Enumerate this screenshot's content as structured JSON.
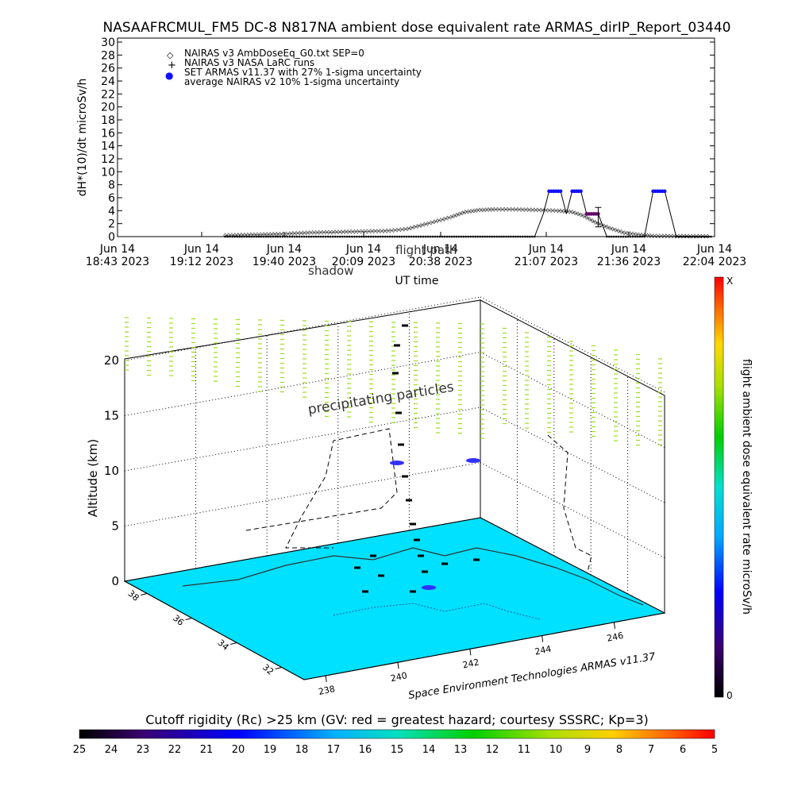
{
  "title": "NASAAFRCMUL_FM5 DC-8   N817NA ambient dose equivalent rate ARMAS_dirIP_Report_03440",
  "colors": {
    "armas": "#1010ff",
    "nairas_v3": "#000000",
    "avg_purple": "#660066",
    "map_fill": "#00e0ff",
    "precip": "#9adf1a"
  },
  "chart_data": [
    {
      "type": "line",
      "title": "NASAAFRCMUL_FM5 DC-8   N817NA ambient dose equivalent rate ARMAS_dirIP_Report_03440",
      "xlabel": "UT time",
      "ylabel": "dH*(10)/dt microSv/h",
      "ylim": [
        0,
        30
      ],
      "yticks": [
        "0",
        "2",
        "4",
        "6",
        "8",
        "10",
        "12",
        "14",
        "16",
        "18",
        "20",
        "22",
        "24",
        "26",
        "28",
        "30"
      ],
      "xlim": [
        "2023-06-14 18:43",
        "2023-06-14 22:04"
      ],
      "xticks": [
        {
          "line1": "Jun 14",
          "line2": "18:43 2023"
        },
        {
          "line1": "Jun 14",
          "line2": "19:12 2023"
        },
        {
          "line1": "Jun 14",
          "line2": "19:40 2023"
        },
        {
          "line1": "Jun 14",
          "line2": "20:09 2023"
        },
        {
          "line1": "Jun 14",
          "line2": "20:38 2023"
        },
        {
          "line1": "Jun 14",
          "line2": "21:07 2023"
        },
        {
          "line1": "Jun 14",
          "line2": "21:36 2023"
        },
        {
          "line1": "Jun 14",
          "line2": "22:04 2023"
        }
      ],
      "legend": [
        {
          "symbol": "◇",
          "label": "NAIRAS v3 AmbDoseEq_G0.txt SEP=0"
        },
        {
          "symbol": "+",
          "label": "NAIRAS v3 NASA LaRC runs"
        },
        {
          "symbol": "●",
          "label": "SET ARMAS v11.37 with 27% 1-sigma uncertainty"
        },
        {
          "symbol": "",
          "label": "average NAIRAS v2 10% 1-sigma uncertainty"
        }
      ],
      "legend_position": "top-left",
      "overlay_labels": {
        "a": "shadow",
        "b": "flight path"
      },
      "series": [
        {
          "name": "NAIRAS v3 AmbDoseEq_G0.txt SEP=0",
          "marker": "diamond",
          "x": [
            "19:12",
            "19:22",
            "19:32",
            "19:40",
            "19:50",
            "20:00",
            "20:09",
            "20:15",
            "20:22",
            "20:30",
            "20:35",
            "20:40",
            "20:45",
            "20:52",
            "21:00",
            "21:07",
            "21:12",
            "21:16",
            "21:20",
            "21:25",
            "21:30",
            "21:35",
            "21:40",
            "22:00"
          ],
          "y": [
            0.2,
            0.3,
            0.4,
            0.6,
            0.7,
            0.8,
            0.9,
            1.2,
            2.0,
            3.0,
            3.8,
            4.1,
            4.2,
            4.2,
            4.1,
            4.0,
            3.8,
            3.2,
            2.2,
            1.3,
            0.6,
            0.3,
            0.1,
            0.05
          ]
        },
        {
          "name": "SET ARMAS v11.37 with 27% 1-sigma uncertainty",
          "marker": "dot",
          "x": [
            "19:12",
            "20:00",
            "20:59",
            "21:02",
            "21:04",
            "21:08",
            "21:10",
            "21:12",
            "21:15",
            "21:17",
            "21:21",
            "21:24",
            "21:37",
            "21:40",
            "21:44",
            "21:48",
            "22:00"
          ],
          "y": [
            0,
            0,
            0,
            3.5,
            7,
            7,
            3.5,
            7,
            7,
            3.5,
            3.5,
            0,
            0,
            7,
            7,
            0,
            0
          ]
        }
      ]
    },
    {
      "type": "scatter",
      "title": "",
      "ylabel": "Altitude (km)",
      "zticks": [
        "0",
        "5",
        "10",
        "15",
        "20"
      ],
      "lat_ticks": [
        "38",
        "36",
        "34",
        "32"
      ],
      "lon_ticks": [
        "238",
        "240",
        "242",
        "244",
        "246"
      ],
      "annotation": "precipitating particles",
      "credit": "Space Environment Technologies ARMAS v11.37",
      "colorbar": {
        "title": "flight ambient dose equivalent rate microSv/h",
        "top_label": "X",
        "bottom_label": "0"
      }
    },
    {
      "type": "heatmap",
      "title": "Cutoff rigidity (Rc) >25 km (GV: red = greatest hazard; courtesy SSSRC; Kp=3)",
      "ticks": [
        "25",
        "24",
        "23",
        "22",
        "21",
        "20",
        "19",
        "18",
        "17",
        "16",
        "15",
        "14",
        "13",
        "12",
        "11",
        "10",
        "9",
        "8",
        "7",
        "6",
        "5"
      ]
    }
  ]
}
